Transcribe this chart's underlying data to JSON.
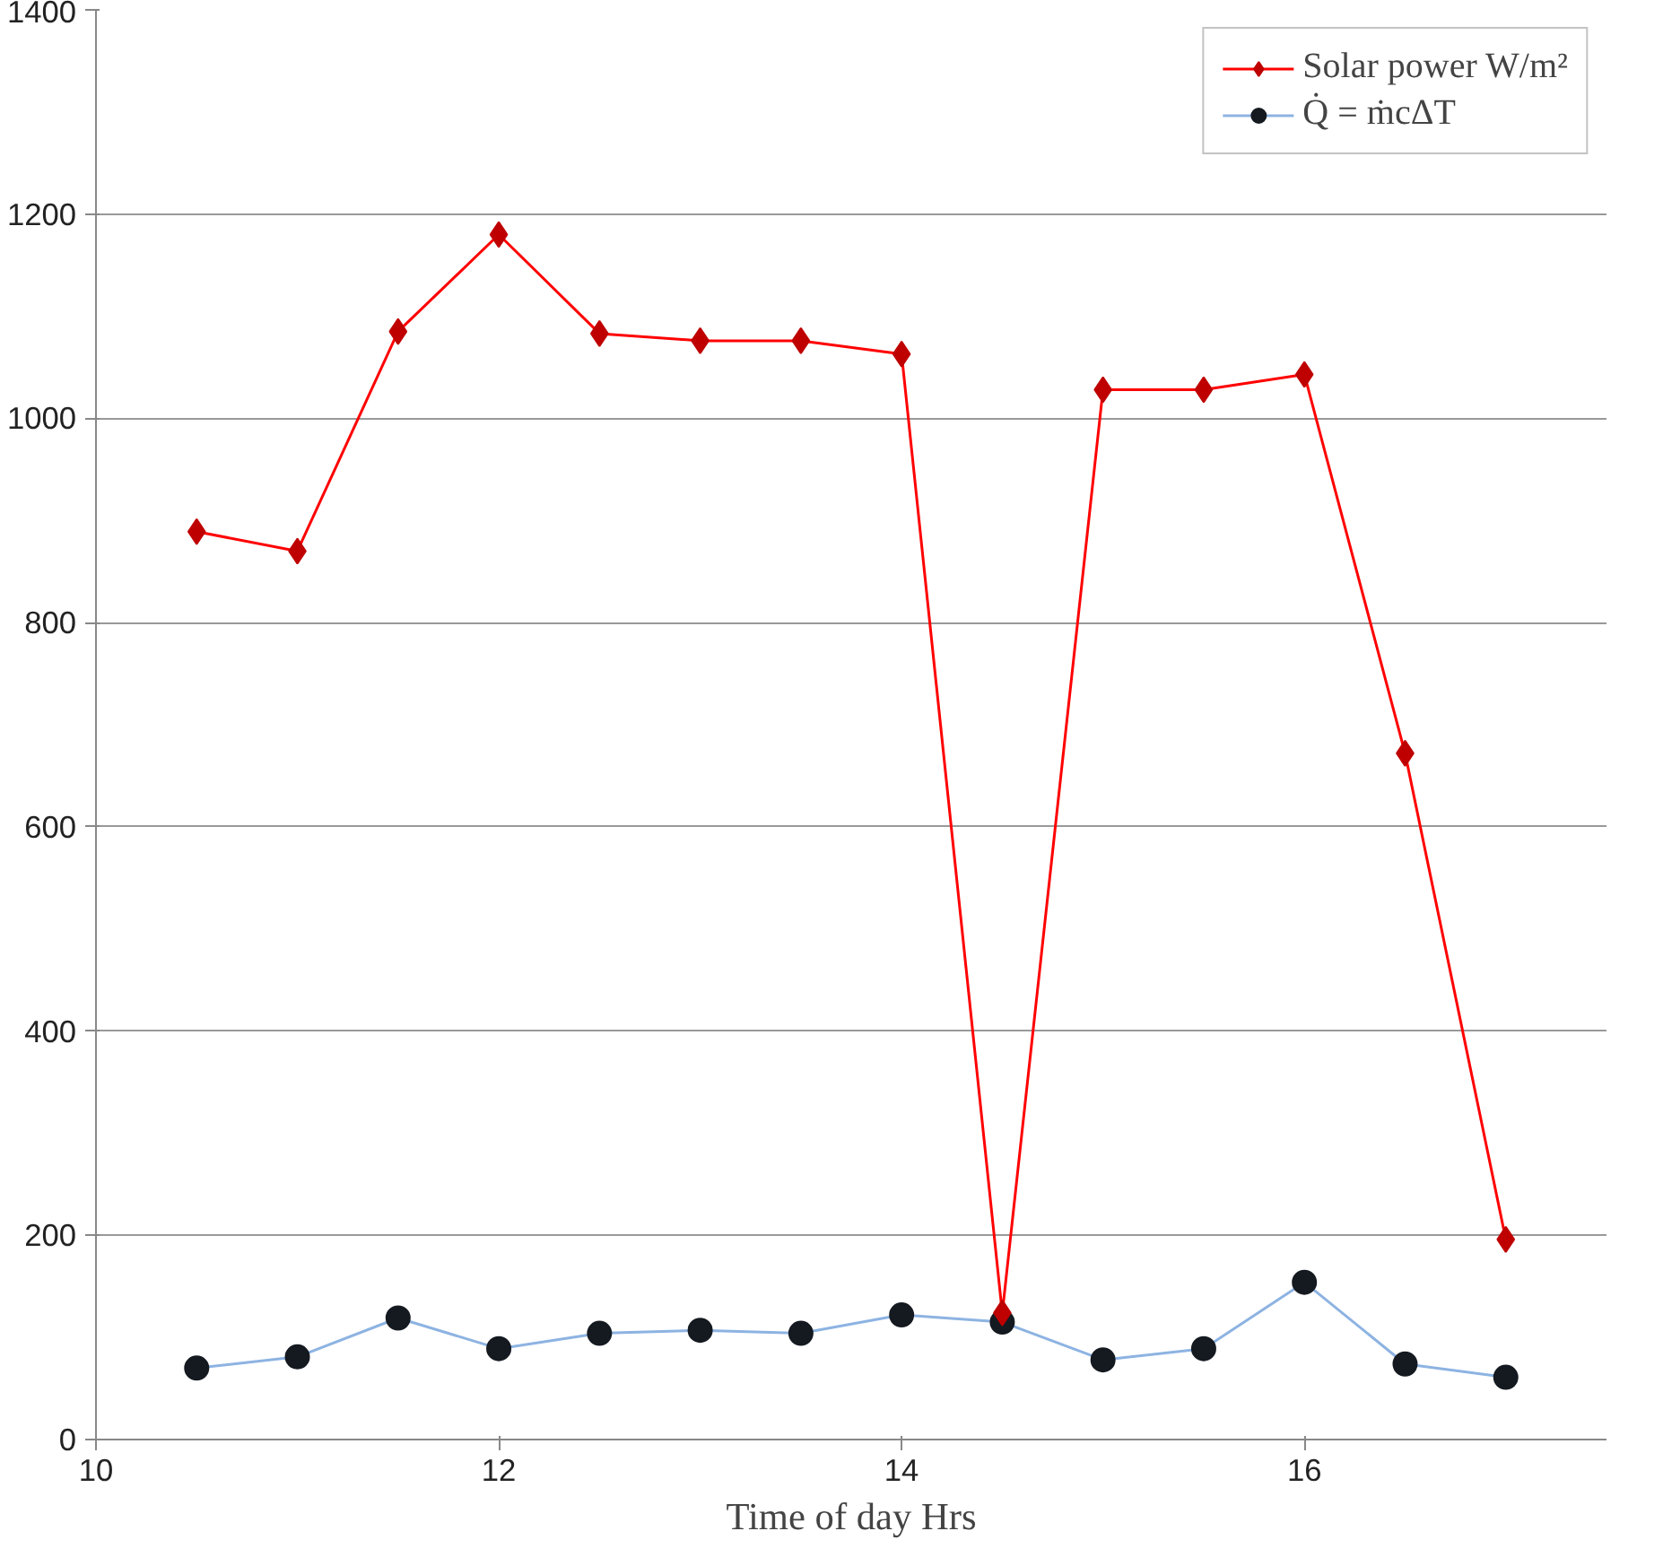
{
  "chart_data": {
    "type": "line",
    "xlabel": "Time of day Hrs",
    "x": [
      10.5,
      11,
      11.5,
      12,
      12.5,
      13,
      13.5,
      14,
      14.5,
      15,
      15.5,
      16,
      16.5,
      17
    ],
    "series": [
      {
        "name": "Solar power W/m²",
        "color": "#ff0000",
        "marker": "diamond",
        "values": [
          889,
          870,
          1085,
          1180,
          1083,
          1076,
          1076,
          1063,
          124,
          1028,
          1028,
          1043,
          672,
          196
        ]
      },
      {
        "name": "Q̇ = ṁcΔT",
        "color": "#8db3e2",
        "marker": "circle",
        "values": [
          70,
          81,
          119,
          89,
          104,
          107,
          104,
          122,
          115,
          78,
          89,
          154,
          74,
          61
        ]
      }
    ],
    "xlim": [
      10,
      17.5
    ],
    "xticks": [
      10,
      12,
      14,
      16
    ],
    "ylim": [
      0,
      1400
    ],
    "yticks": [
      0,
      200,
      400,
      600,
      800,
      1000,
      1200,
      1400
    ],
    "grid": "y",
    "legend": "top right"
  }
}
